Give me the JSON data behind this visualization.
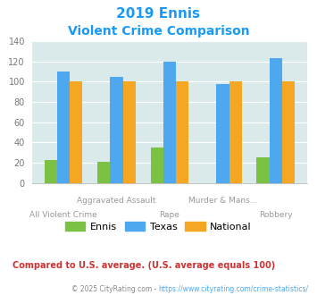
{
  "title_line1": "2019 Ennis",
  "title_line2": "Violent Crime Comparison",
  "ennis": [
    23,
    21,
    35,
    0,
    25
  ],
  "texas": [
    110,
    105,
    120,
    98,
    123
  ],
  "national": [
    100,
    100,
    100,
    100,
    100
  ],
  "color_ennis": "#7bc244",
  "color_texas": "#4da8f0",
  "color_national": "#f5a623",
  "color_title": "#1a9af5",
  "color_bg": "#daeaea",
  "color_note": "#cc3333",
  "color_copyright_text": "#888888",
  "color_copyright_link": "#4da8f0",
  "color_xlabel": "#999999",
  "ylim": [
    0,
    140
  ],
  "yticks": [
    0,
    20,
    40,
    60,
    80,
    100,
    120,
    140
  ],
  "note_text": "Compared to U.S. average. (U.S. average equals 100)",
  "copyright_prefix": "© 2025 CityRating.com - ",
  "copyright_link": "https://www.cityrating.com/crime-statistics/",
  "labels_top": [
    "Aggravated Assault",
    "",
    "Murder & Mans...",
    ""
  ],
  "labels_bottom": [
    "All Violent Crime",
    "",
    "Rape",
    "",
    "Robbery"
  ],
  "legend_labels": [
    "Ennis",
    "Texas",
    "National"
  ]
}
